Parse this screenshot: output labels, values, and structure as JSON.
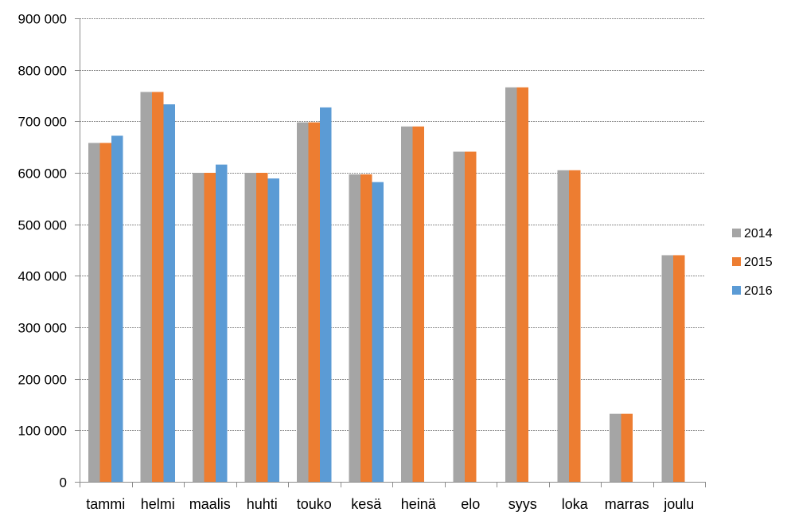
{
  "chart_data": {
    "type": "bar",
    "title": "",
    "xlabel": "",
    "ylabel": "",
    "ylim": [
      0,
      900000
    ],
    "yticks": [
      0,
      100000,
      200000,
      300000,
      400000,
      500000,
      600000,
      700000,
      800000,
      900000
    ],
    "ytick_labels": [
      "0",
      "100 000",
      "200 000",
      "300 000",
      "400 000",
      "500 000",
      "600 000",
      "700 000",
      "800 000",
      "900 000"
    ],
    "categories": [
      "tammi",
      "helmi",
      "maalis",
      "huhti",
      "touko",
      "kesä",
      "heinä",
      "elo",
      "syys",
      "loka",
      "marras",
      "joulu"
    ],
    "series": [
      {
        "name": "2014",
        "color": "#a5a5a5",
        "values": [
          658000,
          757000,
          600000,
          600000,
          698000,
          597000,
          690000,
          641000,
          766000,
          605000,
          132000,
          440000
        ]
      },
      {
        "name": "2015",
        "color": "#ed7d31",
        "values": [
          658000,
          757000,
          600000,
          600000,
          698000,
          597000,
          690000,
          641000,
          766000,
          605000,
          132000,
          440000
        ]
      },
      {
        "name": "2016",
        "color": "#5b9bd5",
        "values": [
          672000,
          733000,
          616000,
          589000,
          727000,
          582000,
          null,
          null,
          null,
          null,
          null,
          null
        ]
      }
    ],
    "grid": true,
    "legend_position": "right"
  }
}
